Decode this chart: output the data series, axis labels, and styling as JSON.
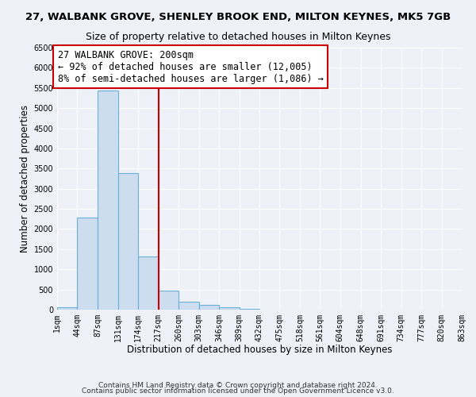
{
  "title": "27, WALBANK GROVE, SHENLEY BROOK END, MILTON KEYNES, MK5 7GB",
  "subtitle": "Size of property relative to detached houses in Milton Keynes",
  "xlabel": "Distribution of detached houses by size in Milton Keynes",
  "ylabel": "Number of detached properties",
  "bar_color": "#ccddf0",
  "bar_edge_color": "#6baed6",
  "bin_edges": [
    1,
    44,
    87,
    131,
    174,
    217,
    260,
    303,
    346,
    389,
    432,
    475,
    518,
    561,
    604,
    648,
    691,
    734,
    777,
    820,
    863
  ],
  "bin_counts": [
    55,
    2280,
    5430,
    3390,
    1310,
    480,
    200,
    110,
    55,
    20,
    0,
    0,
    0,
    0,
    0,
    0,
    0,
    0,
    0,
    0
  ],
  "vline_x": 217,
  "vline_color": "#cc0000",
  "annotation_text": "27 WALBANK GROVE: 200sqm\n← 92% of detached houses are smaller (12,005)\n8% of semi-detached houses are larger (1,086) →",
  "annotation_box_color": "#ffffff",
  "annotation_box_edge_color": "#cc0000",
  "ylim": [
    0,
    6500
  ],
  "yticks": [
    0,
    500,
    1000,
    1500,
    2000,
    2500,
    3000,
    3500,
    4000,
    4500,
    5000,
    5500,
    6000,
    6500
  ],
  "tick_labels": [
    "1sqm",
    "44sqm",
    "87sqm",
    "131sqm",
    "174sqm",
    "217sqm",
    "260sqm",
    "303sqm",
    "346sqm",
    "389sqm",
    "432sqm",
    "475sqm",
    "518sqm",
    "561sqm",
    "604sqm",
    "648sqm",
    "691sqm",
    "734sqm",
    "777sqm",
    "820sqm",
    "863sqm"
  ],
  "footnote1": "Contains HM Land Registry data © Crown copyright and database right 2024.",
  "footnote2": "Contains public sector information licensed under the Open Government Licence v3.0.",
  "background_color": "#eef2f8",
  "grid_color": "#ffffff",
  "title_fontsize": 9.5,
  "subtitle_fontsize": 9,
  "axis_label_fontsize": 8.5,
  "tick_fontsize": 7,
  "annotation_fontsize": 8.5,
  "footnote_fontsize": 6.5
}
